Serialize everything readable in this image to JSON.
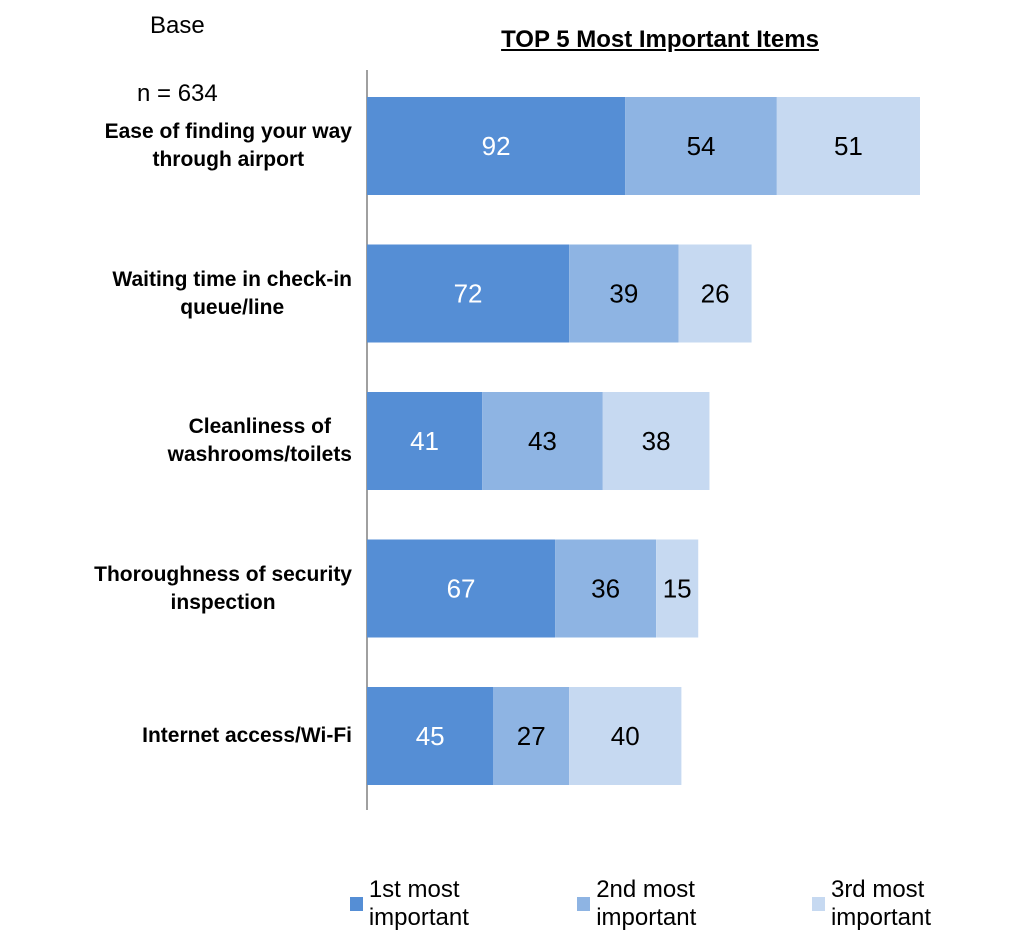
{
  "base": {
    "label": "Base",
    "n_label": "n = 634"
  },
  "chart_data": {
    "type": "bar",
    "orientation": "horizontal",
    "stacked": true,
    "title": "TOP 5 Most Important Items",
    "categories": [
      [
        "Ease of finding your way",
        "through airport"
      ],
      [
        "Waiting time in check-in",
        "queue/line"
      ],
      [
        "Cleanliness of",
        "washrooms/toilets"
      ],
      [
        "Thoroughness of security",
        "inspection"
      ],
      [
        "Internet access/Wi-Fi"
      ]
    ],
    "series": [
      {
        "name": "1st most important",
        "color": "#558ed5",
        "label_color": "#ffffff",
        "values": [
          92,
          72,
          41,
          67,
          45
        ]
      },
      {
        "name": "2nd most important",
        "color": "#8eb4e3",
        "label_color": "#000000",
        "values": [
          54,
          39,
          43,
          36,
          27
        ]
      },
      {
        "name": "3rd most important",
        "color": "#c6d9f1",
        "label_color": "#000000",
        "values": [
          51,
          26,
          38,
          15,
          40
        ]
      }
    ],
    "xlim": [
      0,
      197
    ],
    "grid": false,
    "legend_position": "bottom"
  }
}
